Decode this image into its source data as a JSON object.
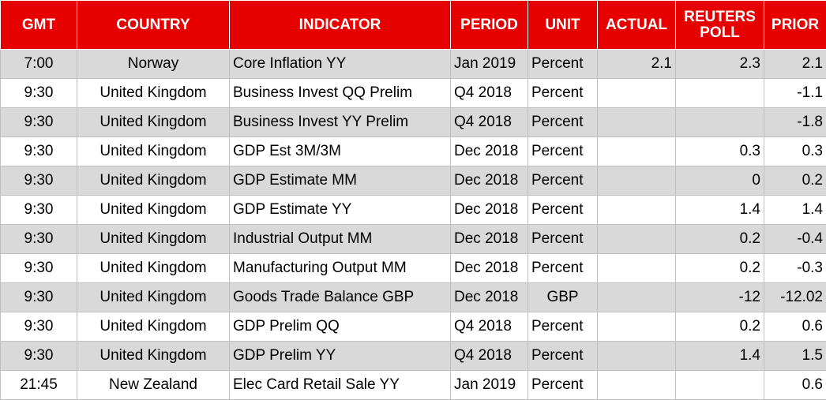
{
  "table": {
    "headers": [
      "GMT",
      "COUNTRY",
      "INDICATOR",
      "PERIOD",
      "UNIT",
      "ACTUAL",
      "REUTERS POLL",
      "PRIOR"
    ],
    "rows": [
      [
        "7:00",
        "Norway",
        "Core Inflation YY",
        "Jan 2019",
        "Percent",
        2.1,
        2.3,
        2.1
      ],
      [
        "9:30",
        "United Kingdom",
        "Business Invest QQ Prelim",
        "Q4 2018",
        "Percent",
        null,
        null,
        -1.1
      ],
      [
        "9:30",
        "United Kingdom",
        "Business Invest YY Prelim",
        "Q4 2018",
        "Percent",
        null,
        null,
        -1.8
      ],
      [
        "9:30",
        "United Kingdom",
        "GDP Est 3M/3M",
        "Dec 2018",
        "Percent",
        null,
        0.3,
        0.3
      ],
      [
        "9:30",
        "United Kingdom",
        "GDP Estimate MM",
        "Dec 2018",
        "Percent",
        null,
        0,
        0.2
      ],
      [
        "9:30",
        "United Kingdom",
        "GDP Estimate YY",
        "Dec 2018",
        "Percent",
        null,
        1.4,
        1.4
      ],
      [
        "9:30",
        "United Kingdom",
        "Industrial Output MM",
        "Dec 2018",
        "Percent",
        null,
        0.2,
        -0.4
      ],
      [
        "9:30",
        "United Kingdom",
        "Manufacturing Output MM",
        "Dec 2018",
        "Percent",
        null,
        0.2,
        -0.3
      ],
      [
        "9:30",
        "United Kingdom",
        "Goods Trade Balance GBP",
        "Dec 2018",
        "GBP",
        null,
        -12,
        -12.02
      ],
      [
        "9:30",
        "United Kingdom",
        "GDP Prelim QQ",
        "Q4 2018",
        "Percent",
        null,
        0.2,
        0.6
      ],
      [
        "9:30",
        "United Kingdom",
        "GDP Prelim YY",
        "Q4 2018",
        "Percent",
        null,
        1.4,
        1.5
      ],
      [
        "21:45",
        "New Zealand",
        "Elec Card Retail Sale YY",
        "Jan 2019",
        "Percent",
        null,
        null,
        0.6
      ]
    ]
  }
}
